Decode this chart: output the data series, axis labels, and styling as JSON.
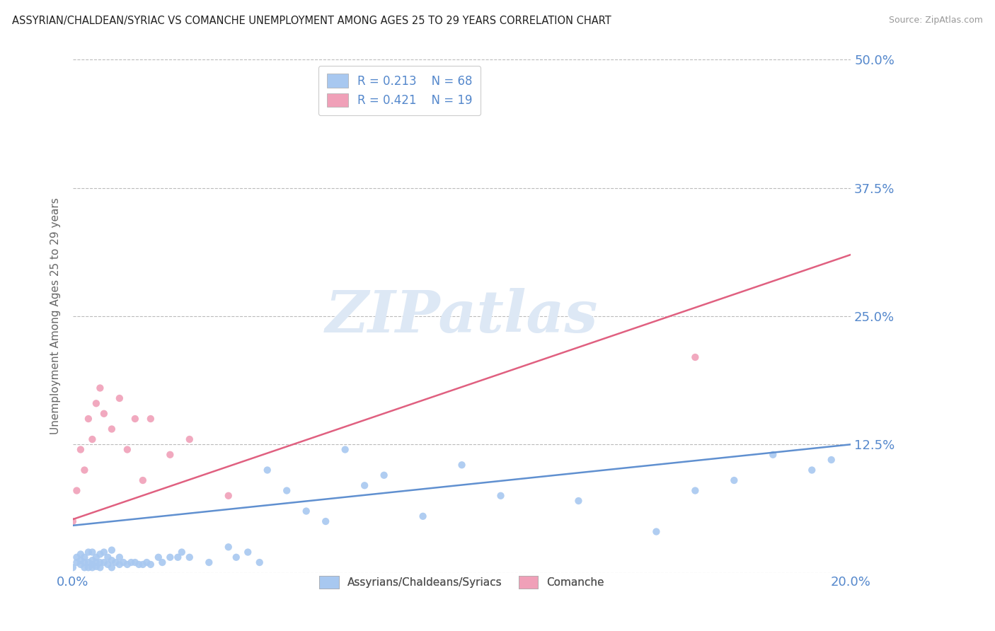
{
  "title": "ASSYRIAN/CHALDEAN/SYRIAC VS COMANCHE UNEMPLOYMENT AMONG AGES 25 TO 29 YEARS CORRELATION CHART",
  "source": "Source: ZipAtlas.com",
  "ylabel": "Unemployment Among Ages 25 to 29 years",
  "xlim": [
    0.0,
    0.2
  ],
  "ylim": [
    0.0,
    0.5
  ],
  "yticks": [
    0.0,
    0.125,
    0.25,
    0.375,
    0.5
  ],
  "ytick_labels": [
    "",
    "12.5%",
    "25.0%",
    "37.5%",
    "50.0%"
  ],
  "xtick_labels": [
    "0.0%",
    "20.0%"
  ],
  "legend_labels": [
    "R = 0.213    N = 68",
    "R = 0.421    N = 19"
  ],
  "bottom_legend": [
    "Assyrians/Chaldeans/Syriacs",
    "Comanche"
  ],
  "blue_color": "#a8c8f0",
  "pink_color": "#f0a0b8",
  "blue_line_color": "#6090d0",
  "pink_line_color": "#e06080",
  "axis_label_color": "#5588cc",
  "watermark_text": "ZIPatlas",
  "background_color": "#ffffff",
  "grid_color": "#bbbbbb",
  "blue_x": [
    0.0,
    0.001,
    0.001,
    0.002,
    0.002,
    0.002,
    0.003,
    0.003,
    0.003,
    0.004,
    0.004,
    0.004,
    0.005,
    0.005,
    0.005,
    0.005,
    0.006,
    0.006,
    0.006,
    0.007,
    0.007,
    0.007,
    0.008,
    0.008,
    0.009,
    0.009,
    0.01,
    0.01,
    0.01,
    0.011,
    0.012,
    0.012,
    0.013,
    0.014,
    0.015,
    0.016,
    0.017,
    0.018,
    0.019,
    0.02,
    0.022,
    0.023,
    0.025,
    0.027,
    0.028,
    0.03,
    0.035,
    0.04,
    0.042,
    0.045,
    0.048,
    0.05,
    0.055,
    0.06,
    0.065,
    0.07,
    0.075,
    0.08,
    0.09,
    0.1,
    0.11,
    0.13,
    0.15,
    0.16,
    0.17,
    0.18,
    0.19,
    0.195
  ],
  "blue_y": [
    0.005,
    0.01,
    0.015,
    0.008,
    0.012,
    0.018,
    0.005,
    0.01,
    0.015,
    0.005,
    0.01,
    0.02,
    0.005,
    0.008,
    0.012,
    0.02,
    0.006,
    0.01,
    0.015,
    0.005,
    0.01,
    0.018,
    0.01,
    0.02,
    0.008,
    0.015,
    0.005,
    0.012,
    0.022,
    0.01,
    0.008,
    0.015,
    0.01,
    0.008,
    0.01,
    0.01,
    0.008,
    0.008,
    0.01,
    0.008,
    0.015,
    0.01,
    0.015,
    0.015,
    0.02,
    0.015,
    0.01,
    0.025,
    0.015,
    0.02,
    0.01,
    0.1,
    0.08,
    0.06,
    0.05,
    0.12,
    0.085,
    0.095,
    0.055,
    0.105,
    0.075,
    0.07,
    0.04,
    0.08,
    0.09,
    0.115,
    0.1,
    0.11
  ],
  "pink_x": [
    0.0,
    0.001,
    0.002,
    0.003,
    0.004,
    0.005,
    0.006,
    0.007,
    0.008,
    0.01,
    0.012,
    0.014,
    0.016,
    0.018,
    0.02,
    0.025,
    0.03,
    0.04,
    0.16
  ],
  "pink_y": [
    0.05,
    0.08,
    0.12,
    0.1,
    0.15,
    0.13,
    0.165,
    0.18,
    0.155,
    0.14,
    0.17,
    0.12,
    0.15,
    0.09,
    0.15,
    0.115,
    0.13,
    0.075,
    0.21
  ],
  "blue_trend_x": [
    0.0,
    0.2
  ],
  "blue_trend_y": [
    0.046,
    0.125
  ],
  "pink_trend_x": [
    0.0,
    0.2
  ],
  "pink_trend_y": [
    0.052,
    0.31
  ]
}
